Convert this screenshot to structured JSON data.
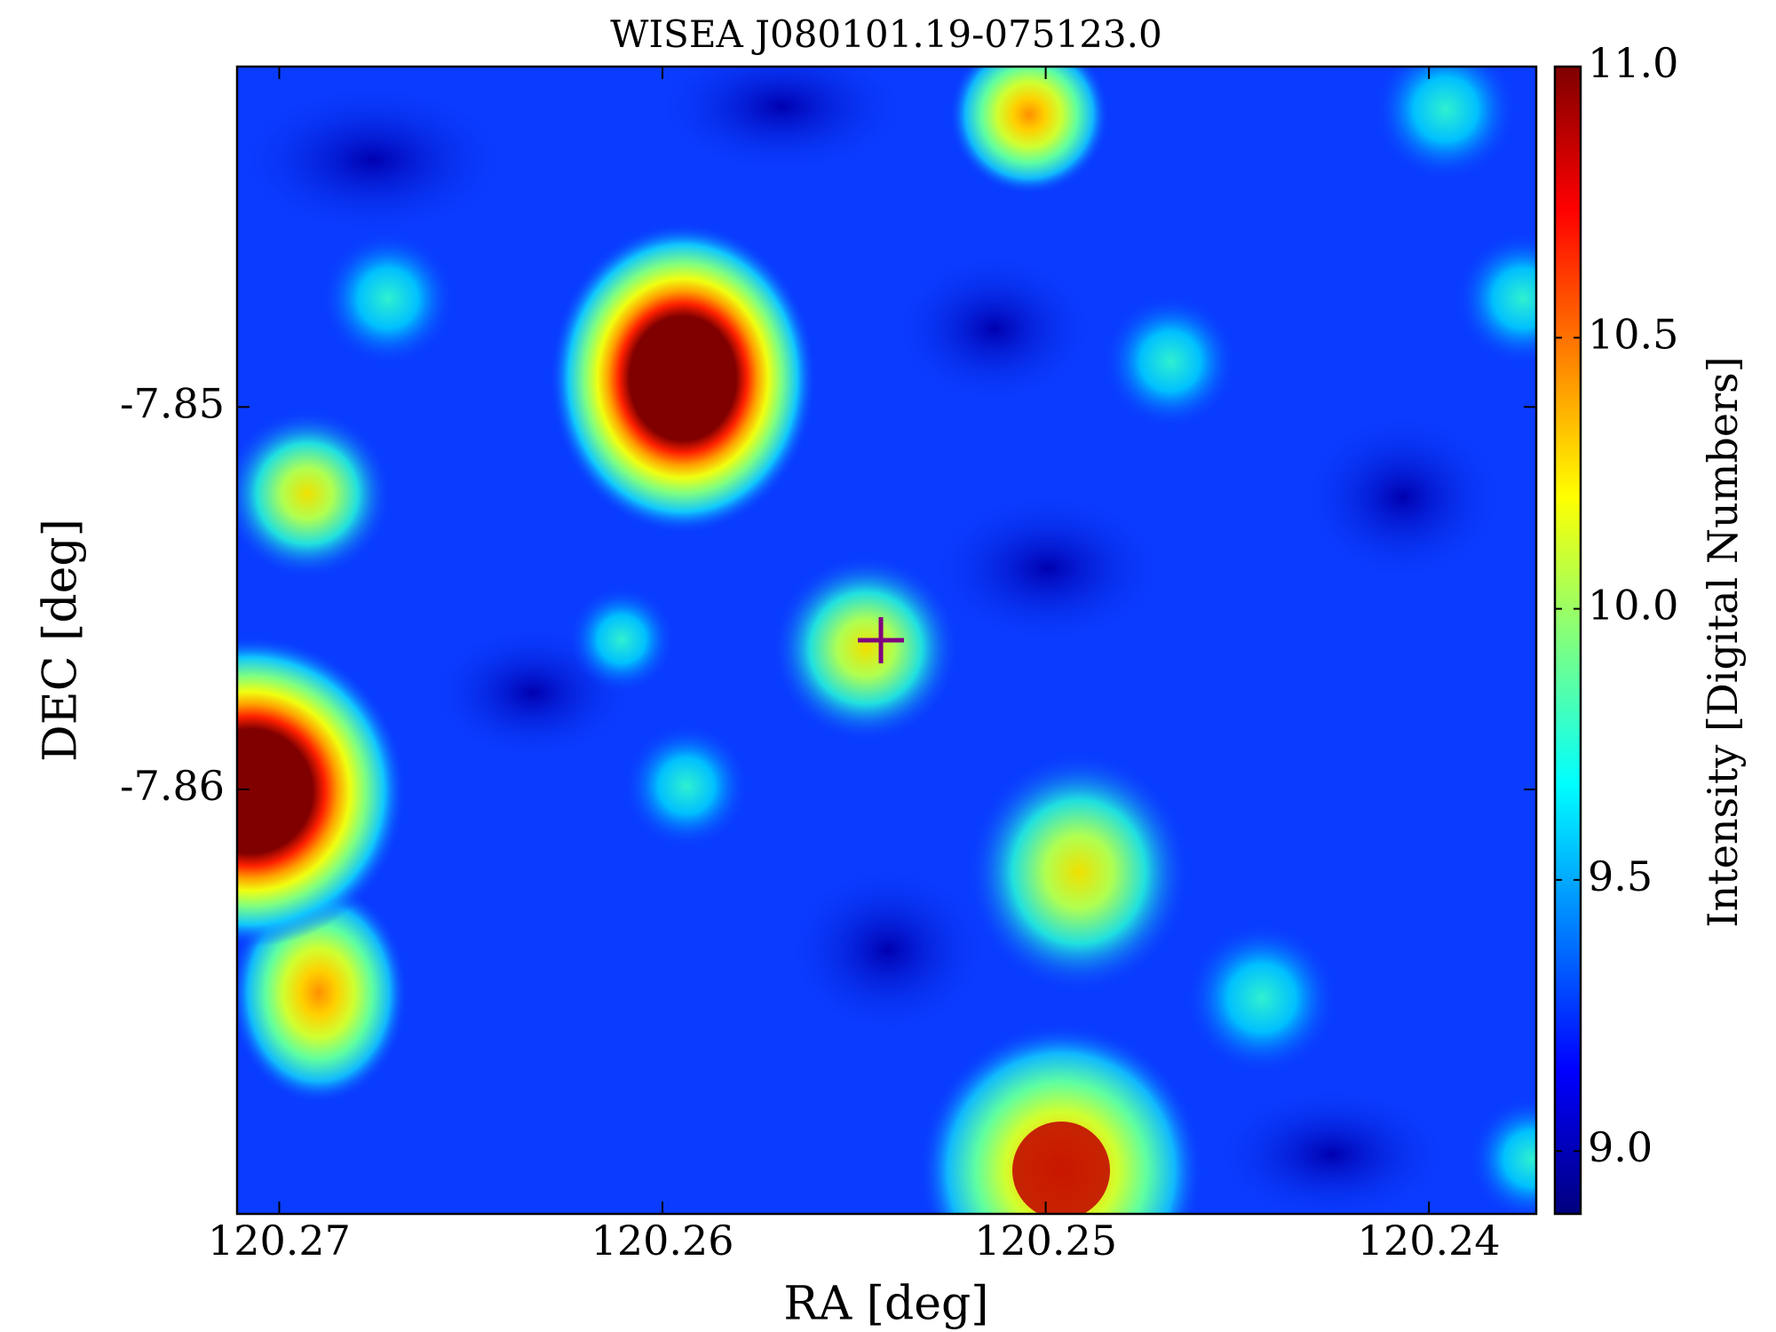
{
  "chart_data": {
    "type": "image",
    "title": "WISEA J080101.19-075123.0",
    "x_label": "RA [deg]",
    "y_label": "DEC [deg]",
    "xlim": [
      120.2711,
      120.2372
    ],
    "ylim": [
      -7.8711,
      -7.8411
    ],
    "xticks": [
      120.27,
      120.26,
      120.25,
      120.24
    ],
    "yticks": [
      -7.86,
      -7.85
    ],
    "colormap": "jet",
    "colorbar": {
      "label": "Intensity [Digital Numbers]",
      "clim": [
        8.884,
        11.0
      ],
      "ticks": [
        {
          "value": 9.0,
          "label": "9.0"
        },
        9.5,
        {
          "value": 10.0,
          "label": "10.0"
        },
        10.5,
        {
          "value": 11.0,
          "label": "11.0"
        }
      ]
    },
    "marker": {
      "ra": 120.2543,
      "dec": -7.8561,
      "color": "#800080"
    }
  }
}
